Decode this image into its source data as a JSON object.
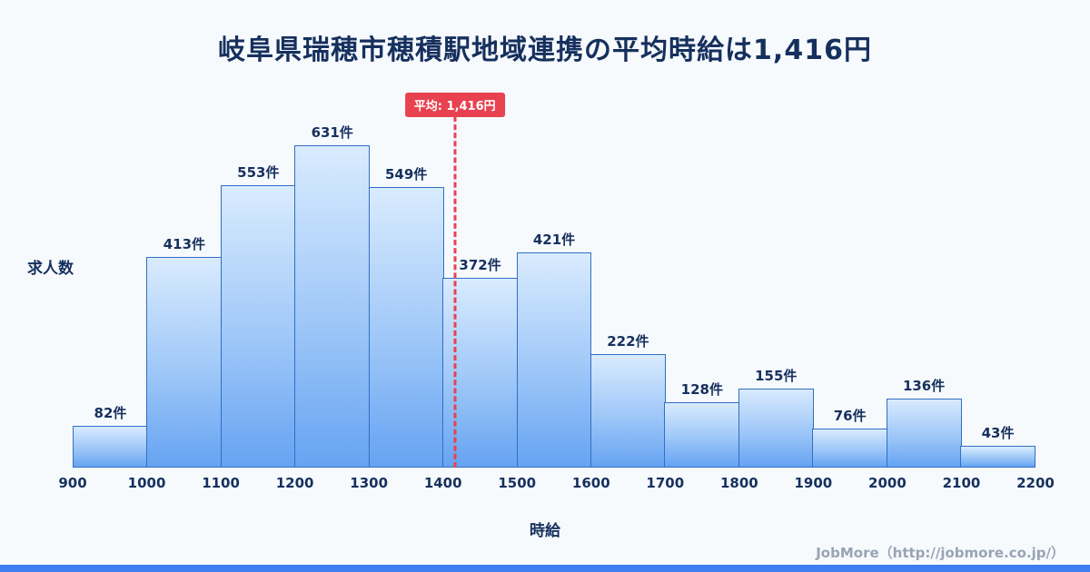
{
  "title": "岐阜県瑞穂市穂積駅地域連携の平均時給は1,416円",
  "footer": "JobMore（http://jobmore.co.jp/）",
  "chart_data": {
    "type": "bar",
    "title": "岐阜県瑞穂市穂積駅地域連携の平均時給は1,416円",
    "xlabel": "時給",
    "ylabel": "求人数",
    "bin_edges": [
      900,
      1000,
      1100,
      1200,
      1300,
      1400,
      1500,
      1600,
      1700,
      1800,
      1900,
      2000,
      2100,
      2200
    ],
    "values": [
      82,
      413,
      553,
      631,
      549,
      372,
      421,
      222,
      128,
      155,
      76,
      136,
      43
    ],
    "value_labels": [
      "82件",
      "413件",
      "553件",
      "631件",
      "549件",
      "372件",
      "421件",
      "222件",
      "128件",
      "155件",
      "76件",
      "136件",
      "43件"
    ],
    "average": 1416,
    "average_label": "平均: 1,416円",
    "x_range": [
      900,
      2200
    ],
    "ylim": [
      0,
      690
    ],
    "grid": false,
    "legend": false
  },
  "colors": {
    "accent_red": "#e8414f",
    "bar_border": "#2f6fc4",
    "bar_top": "#d9ebfe",
    "bar_bottom": "#66a3f2",
    "title_text": "#16305e",
    "footer_text": "#98a4b5",
    "bottom_strip": "#3f7df2",
    "background": "#f7fafd"
  }
}
